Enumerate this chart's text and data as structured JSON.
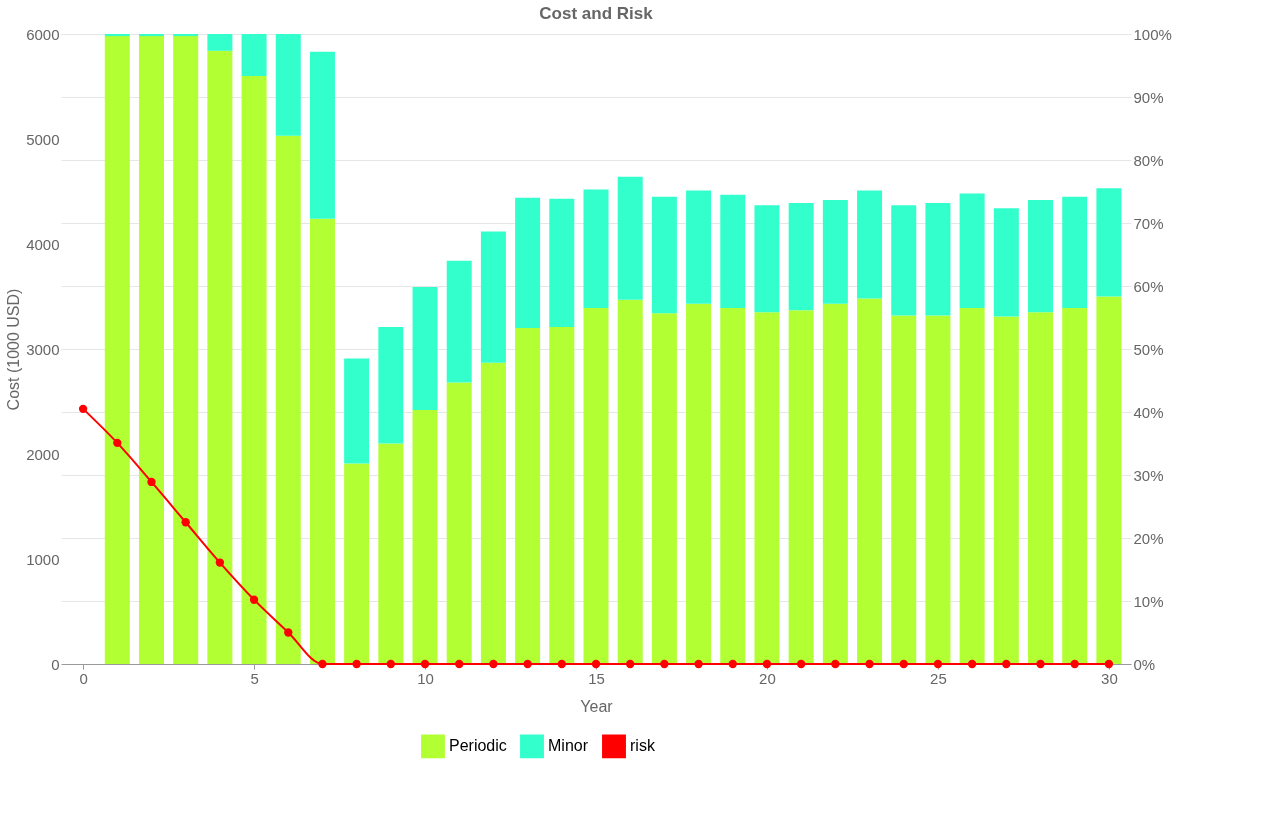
{
  "chart_data": {
    "type": "bar",
    "title": "Cost and Risk",
    "xlabel": "Year",
    "ylabel": "Cost (1000 USD)",
    "x": [
      1,
      2,
      3,
      4,
      5,
      6,
      7,
      8,
      9,
      10,
      11,
      12,
      13,
      14,
      15,
      16,
      17,
      18,
      19,
      20,
      21,
      22,
      23,
      24,
      25,
      26,
      27,
      28,
      29,
      30
    ],
    "stacked": true,
    "series": [
      {
        "name": "Periodic",
        "color": "#b2ff33",
        "values": [
          5980,
          5980,
          5980,
          5840,
          5600,
          5030,
          4240,
          1910,
          2100,
          2420,
          2680,
          2870,
          3200,
          3210,
          3390,
          3470,
          3340,
          3430,
          3390,
          3350,
          3370,
          3430,
          3480,
          3320,
          3320,
          3390,
          3310,
          3350,
          3390,
          3500
        ]
      },
      {
        "name": "Minor",
        "color": "#33ffcc",
        "values": [
          20,
          20,
          20,
          160,
          400,
          970,
          1590,
          1000,
          1110,
          1170,
          1160,
          1250,
          1240,
          1220,
          1130,
          1170,
          1110,
          1080,
          1080,
          1020,
          1020,
          990,
          1030,
          1050,
          1070,
          1090,
          1030,
          1070,
          1060,
          1030
        ]
      },
      {
        "name": "risk",
        "type": "line",
        "axis": "y2",
        "color": "#ff0000",
        "x": [
          0,
          1,
          2,
          3,
          4,
          5,
          6,
          7,
          8,
          9,
          10,
          11,
          12,
          13,
          14,
          15,
          16,
          17,
          18,
          19,
          20,
          21,
          22,
          23,
          24,
          25,
          26,
          27,
          28,
          29,
          30
        ],
        "values": [
          40.5,
          35.1,
          28.9,
          22.5,
          16.1,
          10.2,
          5.0,
          0,
          0,
          0,
          0,
          0,
          0,
          0,
          0,
          0,
          0,
          0,
          0,
          0,
          0,
          0,
          0,
          0,
          0,
          0,
          0,
          0,
          0,
          0,
          0
        ]
      }
    ],
    "xlim": [
      -0.5,
      30.5
    ],
    "xticks": [
      0,
      5,
      10,
      15,
      20,
      25,
      30
    ],
    "ylim": [
      0,
      6000
    ],
    "yticks": [
      0,
      1000,
      2000,
      3000,
      4000,
      5000,
      6000
    ],
    "y2lim": [
      0,
      100
    ],
    "y2ticks": [
      {
        "value": 0,
        "label": "0%"
      },
      {
        "value": 10,
        "label": "10%"
      },
      {
        "value": 20,
        "label": "20%"
      },
      {
        "value": 30,
        "label": "30%"
      },
      {
        "value": 40,
        "label": "40%"
      },
      {
        "value": 50,
        "label": "50%"
      },
      {
        "value": 60,
        "label": "60%"
      },
      {
        "value": 70,
        "label": "70%"
      },
      {
        "value": 80,
        "label": "80%"
      },
      {
        "value": 90,
        "label": "90%"
      },
      {
        "value": 100,
        "label": "100%"
      }
    ],
    "grid": "y2",
    "legend": "bottom",
    "marker": "circle",
    "line_style": "solid"
  }
}
